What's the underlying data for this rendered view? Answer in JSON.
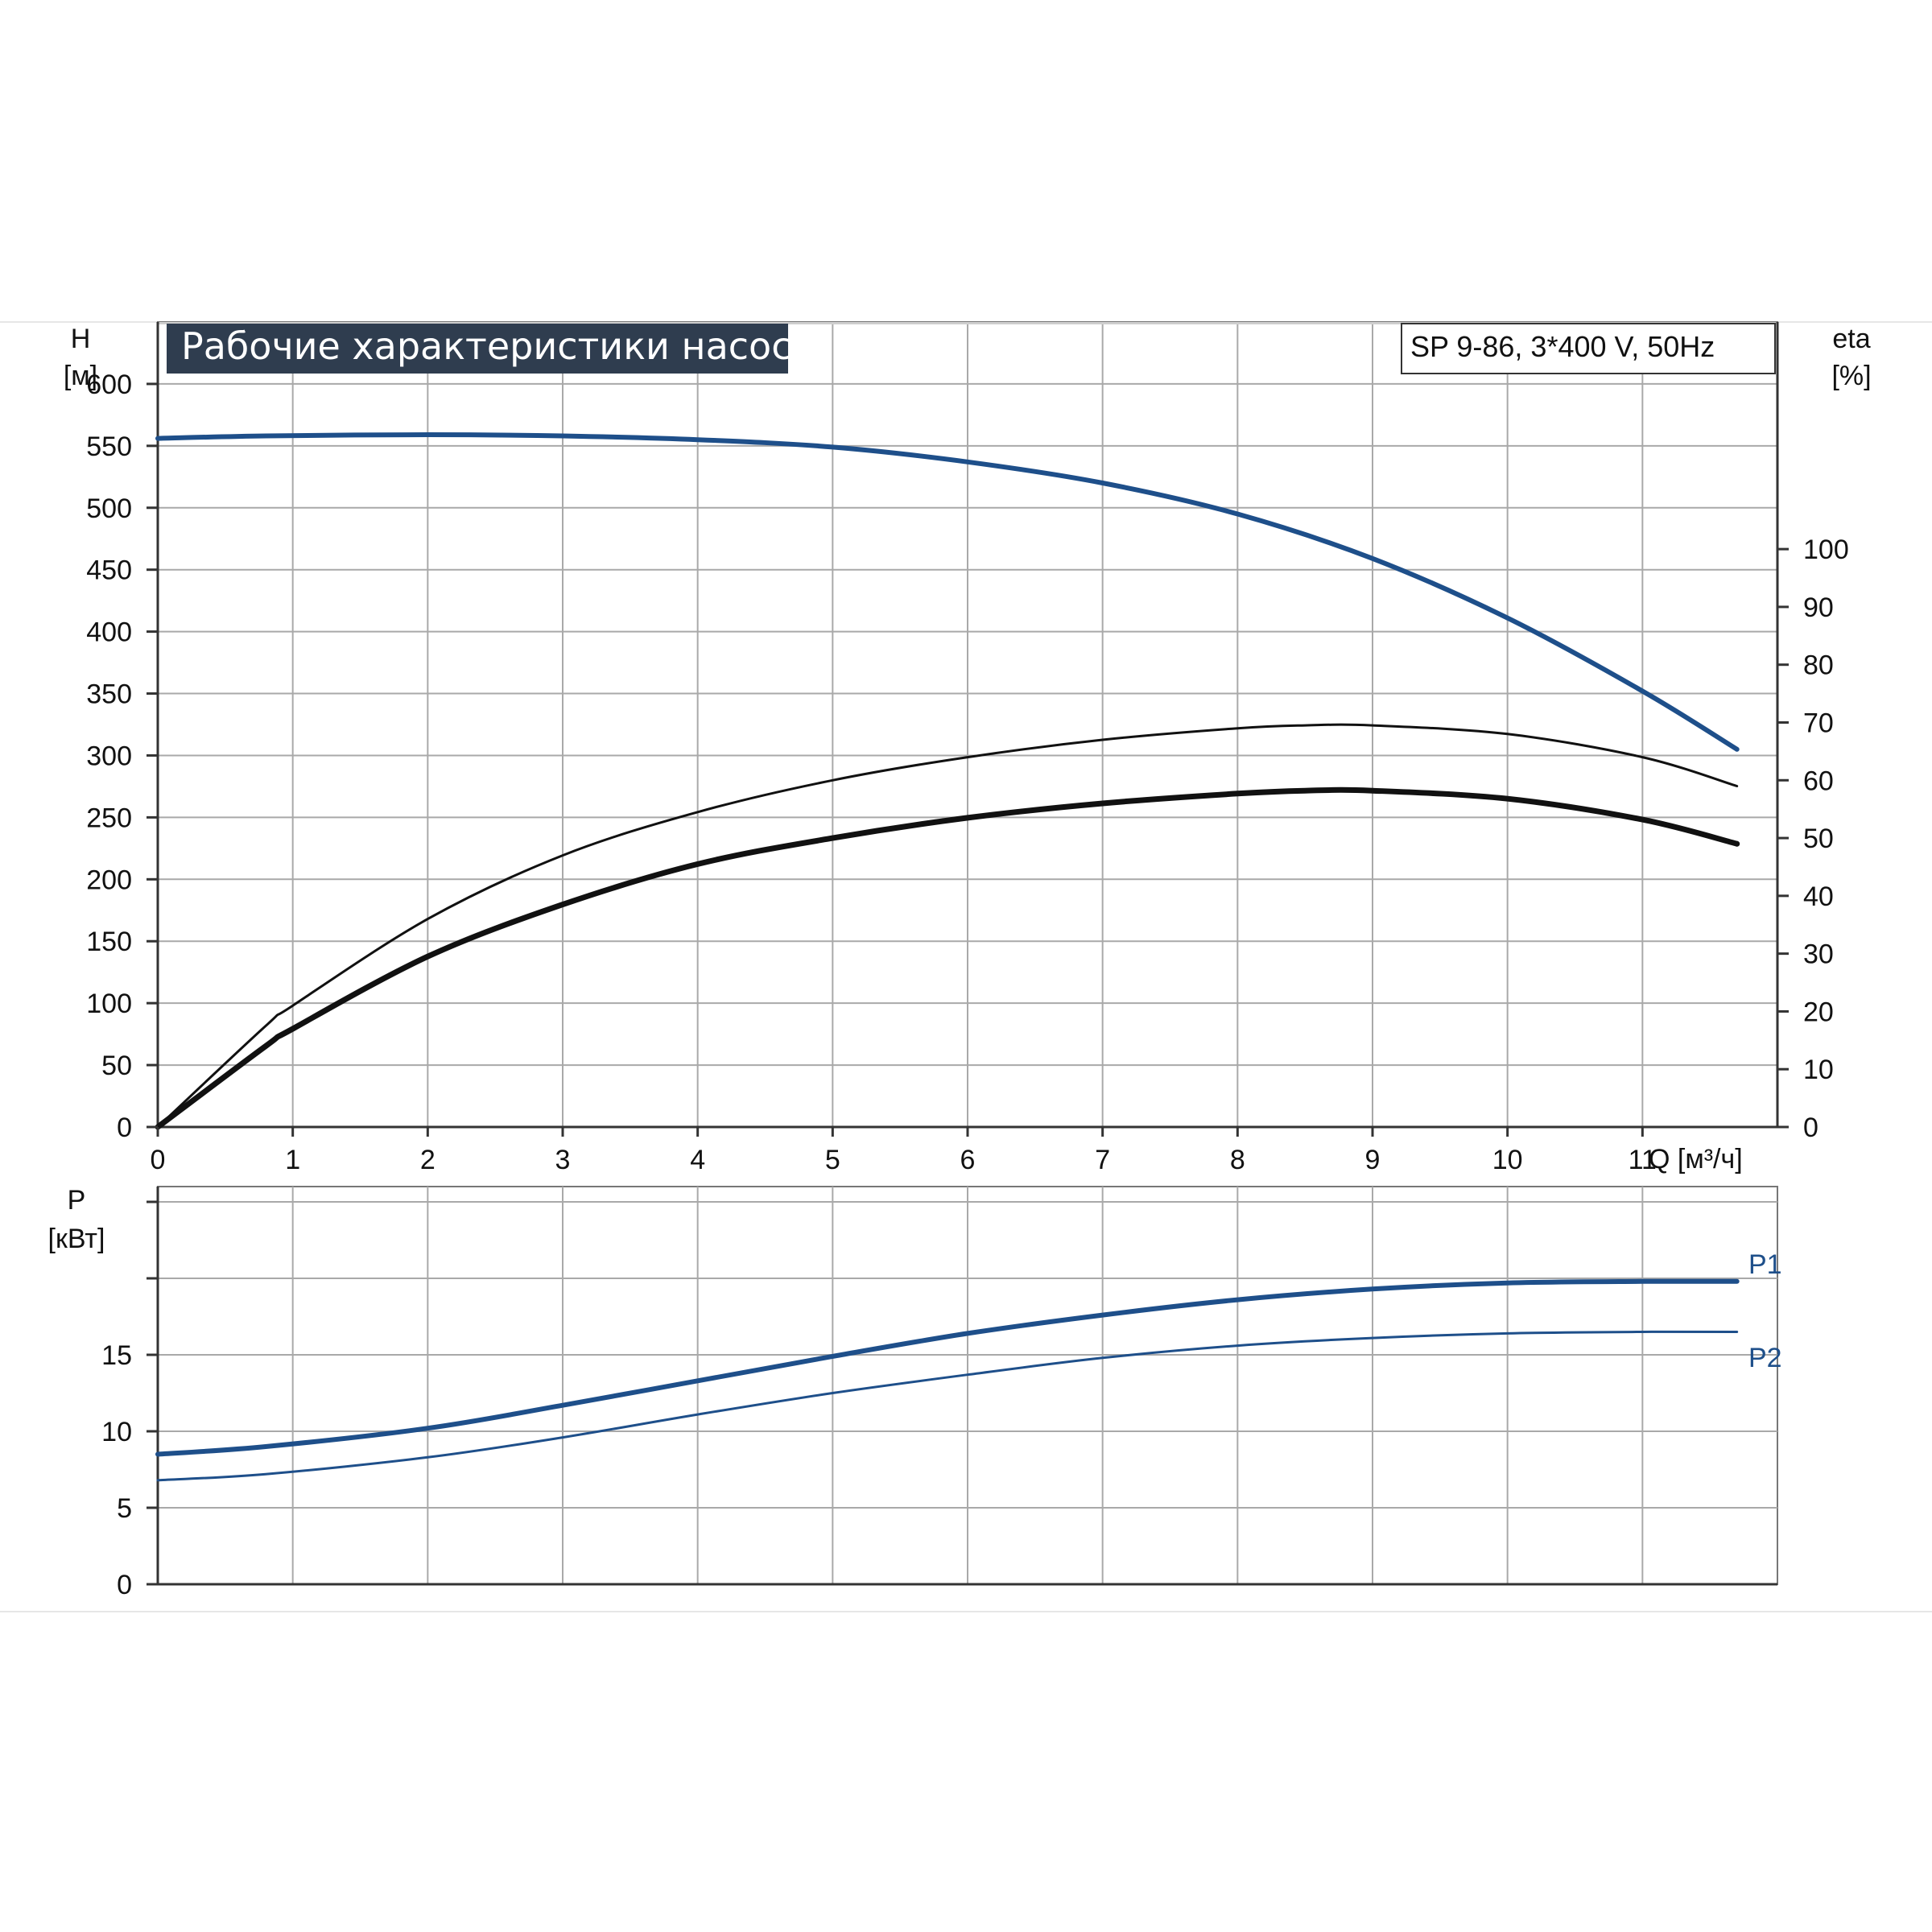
{
  "chart_data": [
    {
      "type": "line",
      "title": "Рабочие характеристики насоса",
      "model": "SP 9-86, 3*400 V, 50Hz",
      "xlabel": "Q [м³/ч]",
      "xlim": [
        0,
        12
      ],
      "x_ticks": [
        "0",
        "1",
        "2",
        "3",
        "4",
        "5",
        "6",
        "7",
        "8",
        "9",
        "10",
        "11"
      ],
      "y_left": {
        "label_line1": "H",
        "label_line2": "[м]",
        "ylim": [
          0,
          650
        ],
        "ticks": [
          "0",
          "50",
          "100",
          "150",
          "200",
          "250",
          "300",
          "350",
          "400",
          "450",
          "500",
          "550",
          "600"
        ]
      },
      "y_right": {
        "label_line1": "eta",
        "label_line2": "[%]",
        "ylim": [
          0,
          139.3
        ],
        "ticks": [
          "0",
          "10",
          "20",
          "30",
          "40",
          "50",
          "60",
          "70",
          "80",
          "90",
          "100"
        ]
      },
      "grid": true,
      "series": [
        {
          "axis": "left",
          "color": "#1e4f8a",
          "x": [
            0,
            0.8,
            2,
            3,
            4,
            5,
            6,
            7,
            8,
            9,
            10,
            11,
            11.7
          ],
          "values": [
            556,
            558,
            559,
            558,
            555,
            549,
            537,
            520,
            495,
            459,
            411,
            352,
            305
          ]
        },
        {
          "axis": "right",
          "color": "#111111",
          "x": [
            0,
            0.8,
            1,
            2,
            3,
            4,
            5,
            6,
            7,
            8,
            8.5,
            9,
            10,
            11,
            11.7
          ],
          "values": [
            0,
            17.5,
            21,
            36,
            47,
            54.5,
            60,
            64,
            67,
            69,
            69.5,
            69.5,
            68,
            64,
            59
          ]
        },
        {
          "axis": "right",
          "color": "#111111",
          "x": [
            0,
            0.8,
            1,
            2,
            3,
            4,
            5,
            6,
            7,
            8,
            8.5,
            9,
            10,
            11,
            11.7
          ],
          "values": [
            0,
            14,
            17,
            29.5,
            38.5,
            45.5,
            50,
            53.5,
            56,
            57.7,
            58.2,
            58.2,
            56.8,
            53.2,
            49
          ]
        }
      ]
    },
    {
      "type": "line",
      "xlim": [
        0,
        12
      ],
      "y_left": {
        "label_line1": "P",
        "label_line2": "[кВт]",
        "ylim": [
          0,
          26
        ],
        "ticks": [
          "0",
          "5",
          "10",
          "15"
        ]
      },
      "grid": true,
      "series": [
        {
          "name": "P1",
          "color": "#1e4f8a",
          "x": [
            0,
            0.8,
            2,
            3,
            4,
            5,
            6,
            7,
            8,
            9,
            10,
            11,
            11.7
          ],
          "values": [
            8.5,
            9.0,
            10.2,
            11.7,
            13.3,
            14.9,
            16.4,
            17.6,
            18.6,
            19.3,
            19.7,
            19.8,
            19.8
          ]
        },
        {
          "name": "P2",
          "color": "#1e4f8a",
          "x": [
            0,
            0.8,
            2,
            3,
            4,
            5,
            6,
            7,
            8,
            9,
            10,
            11,
            11.7
          ],
          "values": [
            6.8,
            7.2,
            8.3,
            9.6,
            11.1,
            12.5,
            13.7,
            14.8,
            15.6,
            16.1,
            16.4,
            16.5,
            16.5
          ]
        }
      ]
    }
  ]
}
